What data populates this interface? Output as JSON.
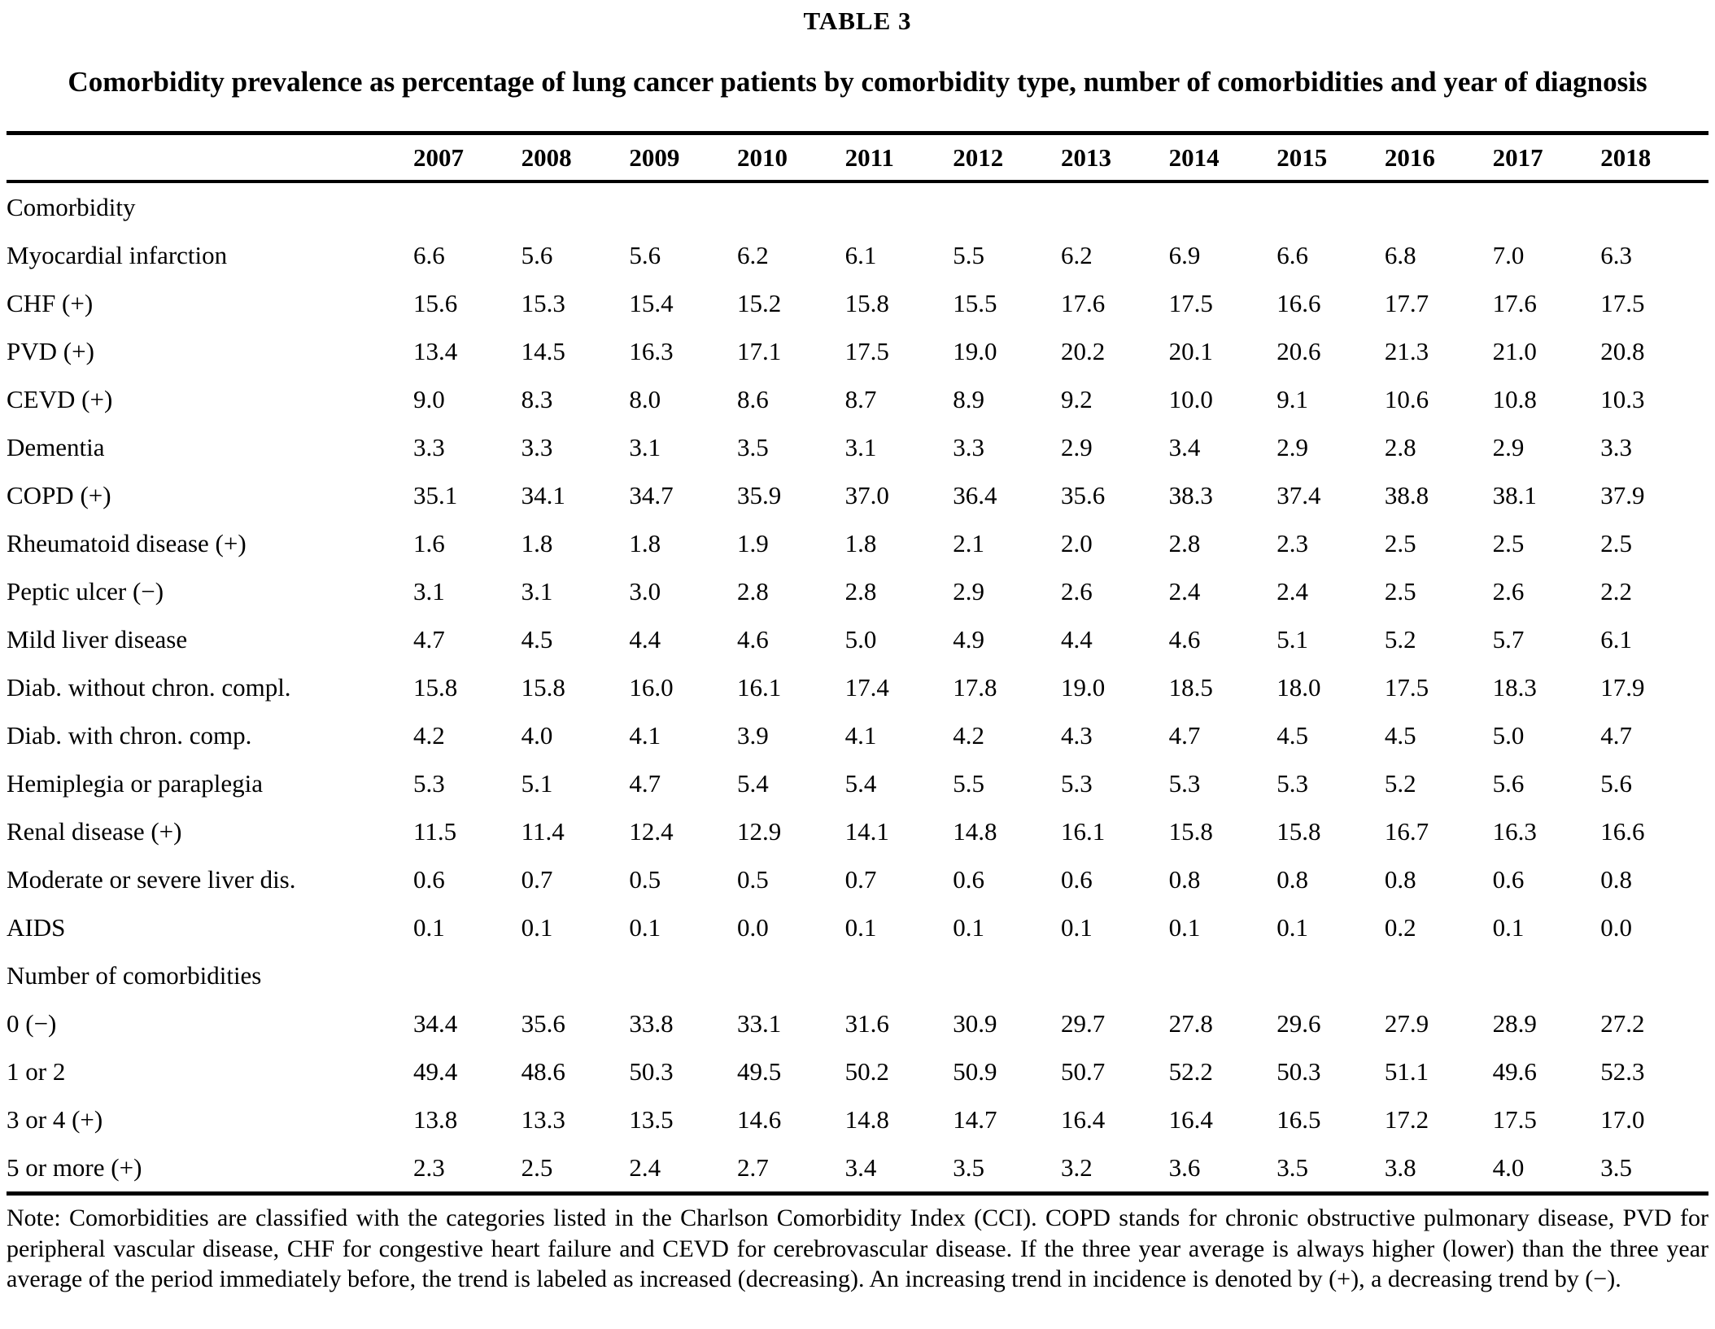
{
  "table_label": "TABLE 3",
  "title": "Comorbidity prevalence as percentage of lung cancer patients by comorbidity type, number of comorbidities and year of diagnosis",
  "years": [
    "2007",
    "2008",
    "2009",
    "2010",
    "2011",
    "2012",
    "2013",
    "2014",
    "2015",
    "2016",
    "2017",
    "2018"
  ],
  "sections": [
    {
      "header": "Comorbidity",
      "rows": [
        {
          "label": "Myocardial infarction",
          "values": [
            "6.6",
            "5.6",
            "5.6",
            "6.2",
            "6.1",
            "5.5",
            "6.2",
            "6.9",
            "6.6",
            "6.8",
            "7.0",
            "6.3"
          ]
        },
        {
          "label": "CHF (+)",
          "values": [
            "15.6",
            "15.3",
            "15.4",
            "15.2",
            "15.8",
            "15.5",
            "17.6",
            "17.5",
            "16.6",
            "17.7",
            "17.6",
            "17.5"
          ]
        },
        {
          "label": "PVD (+)",
          "values": [
            "13.4",
            "14.5",
            "16.3",
            "17.1",
            "17.5",
            "19.0",
            "20.2",
            "20.1",
            "20.6",
            "21.3",
            "21.0",
            "20.8"
          ]
        },
        {
          "label": "CEVD (+)",
          "values": [
            "9.0",
            "8.3",
            "8.0",
            "8.6",
            "8.7",
            "8.9",
            "9.2",
            "10.0",
            "9.1",
            "10.6",
            "10.8",
            "10.3"
          ]
        },
        {
          "label": "Dementia",
          "values": [
            "3.3",
            "3.3",
            "3.1",
            "3.5",
            "3.1",
            "3.3",
            "2.9",
            "3.4",
            "2.9",
            "2.8",
            "2.9",
            "3.3"
          ]
        },
        {
          "label": "COPD (+)",
          "values": [
            "35.1",
            "34.1",
            "34.7",
            "35.9",
            "37.0",
            "36.4",
            "35.6",
            "38.3",
            "37.4",
            "38.8",
            "38.1",
            "37.9"
          ]
        },
        {
          "label": "Rheumatoid disease (+)",
          "values": [
            "1.6",
            "1.8",
            "1.8",
            "1.9",
            "1.8",
            "2.1",
            "2.0",
            "2.8",
            "2.3",
            "2.5",
            "2.5",
            "2.5"
          ]
        },
        {
          "label": "Peptic ulcer (−)",
          "values": [
            "3.1",
            "3.1",
            "3.0",
            "2.8",
            "2.8",
            "2.9",
            "2.6",
            "2.4",
            "2.4",
            "2.5",
            "2.6",
            "2.2"
          ]
        },
        {
          "label": "Mild liver disease",
          "values": [
            "4.7",
            "4.5",
            "4.4",
            "4.6",
            "5.0",
            "4.9",
            "4.4",
            "4.6",
            "5.1",
            "5.2",
            "5.7",
            "6.1"
          ]
        },
        {
          "label": "Diab. without chron. compl.",
          "values": [
            "15.8",
            "15.8",
            "16.0",
            "16.1",
            "17.4",
            "17.8",
            "19.0",
            "18.5",
            "18.0",
            "17.5",
            "18.3",
            "17.9"
          ]
        },
        {
          "label": "Diab. with chron. comp.",
          "values": [
            "4.2",
            "4.0",
            "4.1",
            "3.9",
            "4.1",
            "4.2",
            "4.3",
            "4.7",
            "4.5",
            "4.5",
            "5.0",
            "4.7"
          ]
        },
        {
          "label": "Hemiplegia or paraplegia",
          "values": [
            "5.3",
            "5.1",
            "4.7",
            "5.4",
            "5.4",
            "5.5",
            "5.3",
            "5.3",
            "5.3",
            "5.2",
            "5.6",
            "5.6"
          ]
        },
        {
          "label": "Renal disease (+)",
          "values": [
            "11.5",
            "11.4",
            "12.4",
            "12.9",
            "14.1",
            "14.8",
            "16.1",
            "15.8",
            "15.8",
            "16.7",
            "16.3",
            "16.6"
          ]
        },
        {
          "label": "Moderate or severe liver dis.",
          "values": [
            "0.6",
            "0.7",
            "0.5",
            "0.5",
            "0.7",
            "0.6",
            "0.6",
            "0.8",
            "0.8",
            "0.8",
            "0.6",
            "0.8"
          ]
        },
        {
          "label": "AIDS",
          "values": [
            "0.1",
            "0.1",
            "0.1",
            "0.0",
            "0.1",
            "0.1",
            "0.1",
            "0.1",
            "0.1",
            "0.2",
            "0.1",
            "0.0"
          ]
        }
      ]
    },
    {
      "header": "Number of comorbidities",
      "rows": [
        {
          "label": "0 (−)",
          "values": [
            "34.4",
            "35.6",
            "33.8",
            "33.1",
            "31.6",
            "30.9",
            "29.7",
            "27.8",
            "29.6",
            "27.9",
            "28.9",
            "27.2"
          ]
        },
        {
          "label": "1 or 2",
          "values": [
            "49.4",
            "48.6",
            "50.3",
            "49.5",
            "50.2",
            "50.9",
            "50.7",
            "52.2",
            "50.3",
            "51.1",
            "49.6",
            "52.3"
          ]
        },
        {
          "label": "3 or 4 (+)",
          "values": [
            "13.8",
            "13.3",
            "13.5",
            "14.6",
            "14.8",
            "14.7",
            "16.4",
            "16.4",
            "16.5",
            "17.2",
            "17.5",
            "17.0"
          ]
        },
        {
          "label": "5 or more (+)",
          "values": [
            "2.3",
            "2.5",
            "2.4",
            "2.7",
            "3.4",
            "3.5",
            "3.2",
            "3.6",
            "3.5",
            "3.8",
            "4.0",
            "3.5"
          ]
        }
      ]
    }
  ],
  "note": "Note: Comorbidities are classified with the categories listed in the Charlson Comorbidity Index (CCI). COPD stands for chronic obstructive pulmonary disease, PVD for peripheral vascular disease, CHF for congestive heart failure and CEVD for cerebrovascular disease. If the three year average is always higher (lower) than the three year average of the period immediately before, the trend is labeled as increased (decreasing). An increasing trend in incidence is denoted by (+), a decreasing trend by (−)."
}
